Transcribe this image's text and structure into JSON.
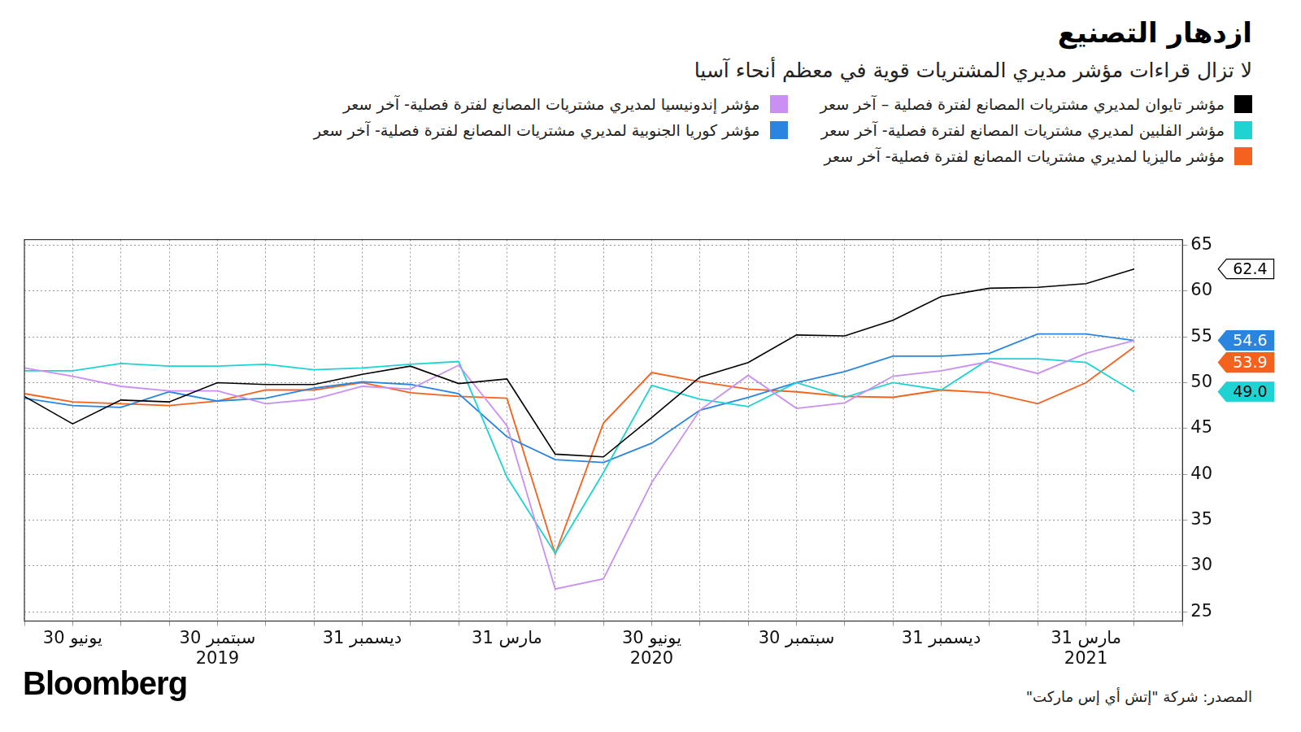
{
  "chart_data": {
    "type": "line",
    "title": "ازدهار التصنيع",
    "subtitle": "لا تزال قراءات مؤشر مديري المشتريات قوية في معظم أنحاء آسيا",
    "source": "المصدر: شركة \"إتش أي إس ماركت\"",
    "logo": "Bloomberg",
    "categories": [
      null,
      "30 يونيو",
      null,
      null,
      [
        "30 سبتمبر",
        "2019"
      ],
      null,
      null,
      "31 ديسمبر",
      null,
      null,
      "31 مارس",
      null,
      null,
      [
        "30 يونيو",
        "2020"
      ],
      null,
      null,
      "30 سبتمبر",
      null,
      null,
      "31 ديسمبر",
      null,
      null,
      [
        "31 مارس",
        "2021"
      ],
      null,
      null
    ],
    "series": [
      {
        "name": "مؤشر تايوان لمديري مشتريات المصانع لفترة فصلية – آخر سعر",
        "color": "#000000",
        "values": [
          48.5,
          45.5,
          48.1,
          47.9,
          50.0,
          49.8,
          49.8,
          50.9,
          51.8,
          49.9,
          50.4,
          42.2,
          41.9,
          46.2,
          50.6,
          52.2,
          55.2,
          55.1,
          56.8,
          59.4,
          60.3,
          60.4,
          60.8,
          62.4,
          null
        ],
        "value_labels": [
          null,
          null,
          null,
          null,
          null,
          null,
          null,
          null,
          null,
          null,
          null,
          null,
          null,
          null,
          null,
          null,
          null,
          null,
          null,
          null,
          null,
          null,
          null,
          "62.4",
          null
        ]
      },
      {
        "name": "مؤشر إندونيسيا لمديري مشتريات المصانع لفترة فصلية- آخر سعر",
        "color": "#c98ff2",
        "values": [
          51.6,
          50.7,
          49.6,
          49.1,
          49.1,
          47.7,
          48.2,
          49.6,
          49.3,
          51.9,
          45.3,
          27.5,
          28.6,
          39.1,
          47.0,
          50.8,
          47.2,
          47.8,
          50.7,
          51.3,
          52.3,
          51.0,
          53.2,
          54.6,
          null
        ]
      },
      {
        "name": "مؤشر الفلبين لمديري مشتريات المصانع لفترة فصلية- آخر سعر",
        "color": "#1fd3d3",
        "values": [
          51.3,
          51.3,
          52.1,
          51.8,
          51.8,
          52.0,
          51.4,
          51.6,
          52.0,
          52.3,
          39.7,
          31.4,
          40.2,
          49.7,
          48.2,
          47.4,
          50.0,
          48.4,
          50.0,
          49.2,
          52.6,
          52.6,
          52.2,
          49.0,
          null
        ],
        "value_labels": [
          null,
          null,
          null,
          null,
          null,
          null,
          null,
          null,
          null,
          null,
          null,
          null,
          null,
          null,
          null,
          null,
          null,
          null,
          null,
          null,
          null,
          null,
          null,
          "49.0",
          null
        ]
      },
      {
        "name": "مؤشر كوريا الجنوبية لمديري مشتريات المصانع لفترة فصلية- آخر سعر",
        "color": "#2a85e0",
        "values": [
          48.3,
          47.5,
          47.3,
          49.0,
          48.0,
          48.3,
          49.4,
          50.1,
          49.8,
          48.8,
          44.1,
          41.6,
          41.3,
          43.4,
          47.0,
          48.4,
          50.0,
          51.2,
          52.9,
          52.9,
          53.2,
          55.3,
          55.3,
          54.6,
          null
        ],
        "value_labels": [
          null,
          null,
          null,
          null,
          null,
          null,
          null,
          null,
          null,
          null,
          null,
          null,
          null,
          null,
          null,
          null,
          null,
          null,
          null,
          null,
          null,
          null,
          null,
          "54.6",
          null
        ]
      },
      {
        "name": "مؤشر ماليزيا لمديري مشتريات المصانع لفترة فصلية- آخر سعر",
        "color": "#f5621e",
        "values": [
          48.8,
          47.9,
          47.7,
          47.5,
          48.0,
          49.2,
          49.2,
          50.0,
          48.9,
          48.5,
          48.3,
          31.3,
          45.6,
          51.1,
          50.1,
          49.3,
          49.0,
          48.5,
          48.4,
          49.2,
          48.9,
          47.7,
          50.0,
          53.9,
          null
        ],
        "value_labels": [
          null,
          null,
          null,
          null,
          null,
          null,
          null,
          null,
          null,
          null,
          null,
          null,
          null,
          null,
          null,
          null,
          null,
          null,
          null,
          null,
          null,
          null,
          null,
          "53.9",
          null
        ]
      }
    ],
    "ylim": [
      24,
      65.6
    ],
    "yticks": [
      25,
      30,
      35,
      40,
      45,
      50,
      55,
      60,
      65
    ],
    "grid": true,
    "legend": "top"
  }
}
